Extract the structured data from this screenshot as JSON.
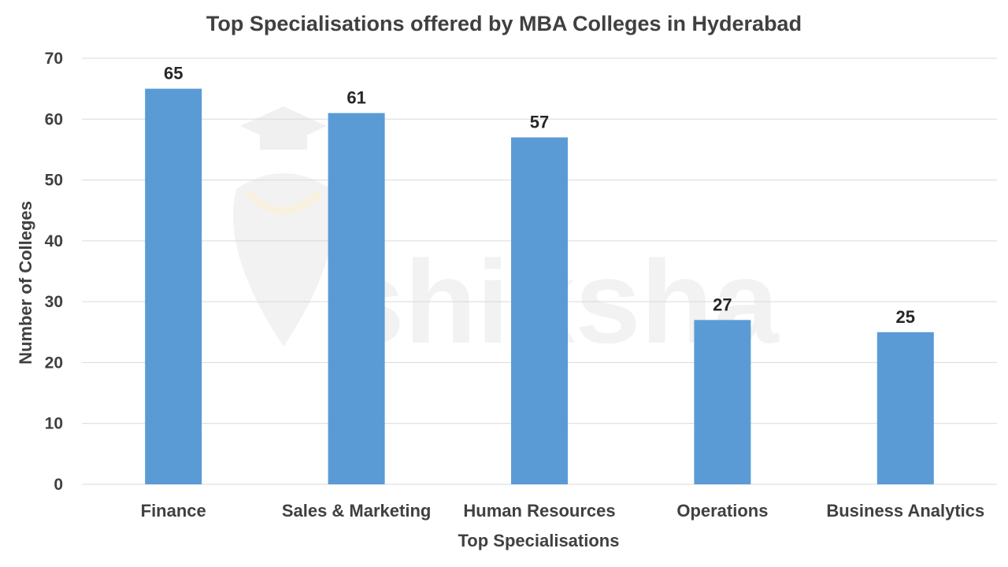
{
  "chart_data": {
    "type": "bar",
    "title": "Top Specialisations offered by MBA Colleges in Hyderabad",
    "xlabel": "Top Specialisations",
    "ylabel": "Number of Colleges",
    "categories": [
      "Finance",
      "Sales & Marketing",
      "Human Resources",
      "Operations",
      "Business Analytics"
    ],
    "values": [
      65,
      61,
      57,
      27,
      25
    ],
    "ylim": [
      0,
      70
    ],
    "yticks": [
      0,
      10,
      20,
      30,
      40,
      50,
      60,
      70
    ],
    "grid": true,
    "data_labels": true,
    "bar_color": "#5b9bd5"
  },
  "watermark": {
    "text": "shiksha"
  }
}
